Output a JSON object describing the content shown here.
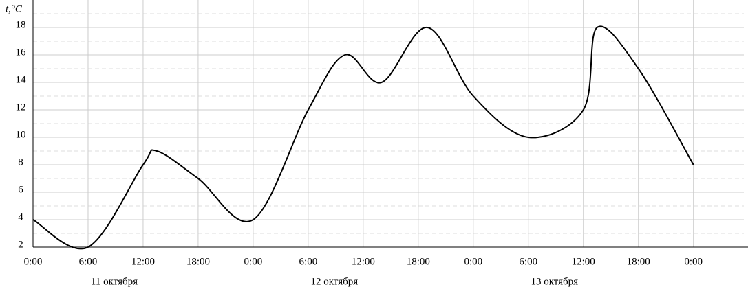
{
  "chart_data": {
    "type": "line",
    "y_axis_label": "t,°C",
    "x": [
      0,
      6,
      12,
      13.5,
      18,
      24,
      30,
      34,
      38,
      43,
      48,
      54,
      60,
      61.5,
      66,
      72
    ],
    "series": [
      {
        "color": "#000000",
        "values": [
          4,
          2,
          8,
          9,
          7,
          4,
          12,
          16,
          14,
          18,
          13,
          10,
          12,
          18,
          15,
          8
        ]
      }
    ],
    "xlim": [
      0,
      77.5
    ],
    "ylim": [
      2,
      20
    ],
    "xticks": [
      {
        "value": 0,
        "label": "0:00"
      },
      {
        "value": 6,
        "label": "6:00"
      },
      {
        "value": 12,
        "label": "12:00"
      },
      {
        "value": 18,
        "label": "18:00"
      },
      {
        "value": 24,
        "label": "0:00"
      },
      {
        "value": 30,
        "label": "6:00"
      },
      {
        "value": 36,
        "label": "12:00"
      },
      {
        "value": 42,
        "label": "18:00"
      },
      {
        "value": 48,
        "label": "0:00"
      },
      {
        "value": 54,
        "label": "6:00"
      },
      {
        "value": 60,
        "label": "12:00"
      },
      {
        "value": 66,
        "label": "18:00"
      },
      {
        "value": 72,
        "label": "0:00"
      }
    ],
    "yticks": [
      2,
      4,
      6,
      8,
      10,
      12,
      14,
      16,
      18
    ],
    "minor_yticks": [
      3,
      5,
      7,
      9,
      11,
      13,
      15,
      17,
      19
    ],
    "day_labels": [
      {
        "value": 6,
        "label": "11 октября"
      },
      {
        "value": 30,
        "label": "12 октября"
      },
      {
        "value": 54,
        "label": "13 октября"
      }
    ],
    "grid": true
  }
}
